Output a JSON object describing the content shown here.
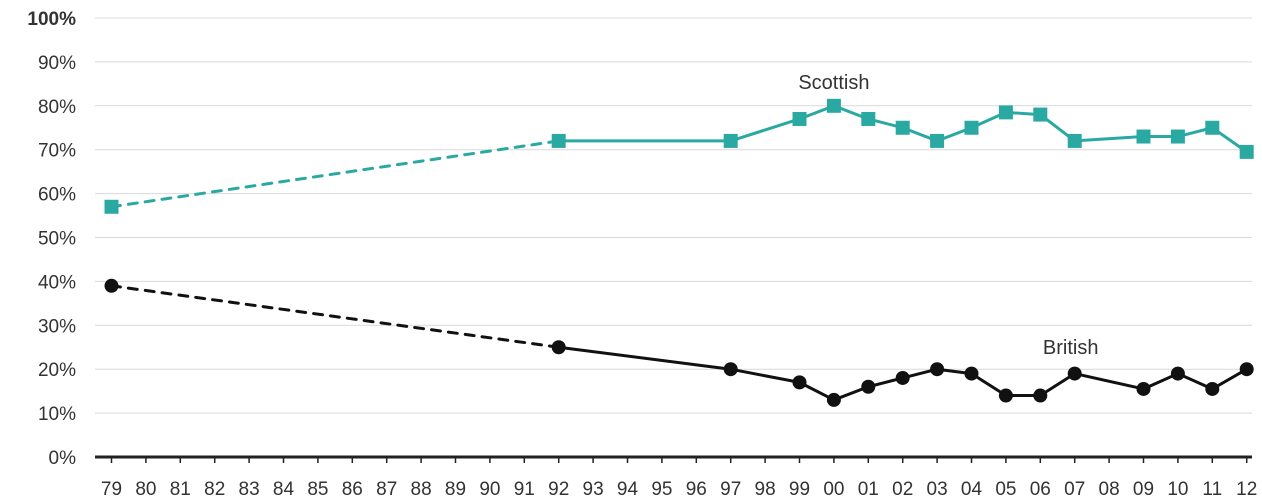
{
  "chart_data": {
    "type": "line",
    "title": "",
    "xlabel": "",
    "ylabel": "",
    "ylim": [
      0,
      100
    ],
    "y_ticks": [
      "0%",
      "10%",
      "20%",
      "30%",
      "40%",
      "50%",
      "60%",
      "70%",
      "80%",
      "90%",
      "100%"
    ],
    "x_ticks": [
      "79",
      "80",
      "81",
      "82",
      "83",
      "84",
      "85",
      "86",
      "87",
      "88",
      "89",
      "90",
      "91",
      "92",
      "93",
      "94",
      "95",
      "96",
      "97",
      "98",
      "99",
      "00",
      "01",
      "02",
      "03",
      "04",
      "05",
      "06",
      "07",
      "08",
      "09",
      "10",
      "11",
      "12"
    ],
    "grid": "horizontal",
    "series": [
      {
        "name": "Scottish",
        "color": "#2aa9a3",
        "marker": "square",
        "dashed_segment": [
          "79",
          "92"
        ],
        "points": [
          {
            "x": "79",
            "y": 57
          },
          {
            "x": "92",
            "y": 72
          },
          {
            "x": "97",
            "y": 72
          },
          {
            "x": "99",
            "y": 77
          },
          {
            "x": "00",
            "y": 80
          },
          {
            "x": "01",
            "y": 77
          },
          {
            "x": "02",
            "y": 75
          },
          {
            "x": "03",
            "y": 72
          },
          {
            "x": "04",
            "y": 75
          },
          {
            "x": "05",
            "y": 78.5
          },
          {
            "x": "06",
            "y": 78
          },
          {
            "x": "07",
            "y": 72
          },
          {
            "x": "09",
            "y": 73
          },
          {
            "x": "10",
            "y": 73
          },
          {
            "x": "11",
            "y": 75
          },
          {
            "x": "12",
            "y": 69.5
          }
        ]
      },
      {
        "name": "British",
        "color": "#111111",
        "marker": "circle",
        "dashed_segment": [
          "79",
          "92"
        ],
        "points": [
          {
            "x": "79",
            "y": 39
          },
          {
            "x": "92",
            "y": 25
          },
          {
            "x": "97",
            "y": 20
          },
          {
            "x": "99",
            "y": 17
          },
          {
            "x": "00",
            "y": 13
          },
          {
            "x": "01",
            "y": 16
          },
          {
            "x": "02",
            "y": 18
          },
          {
            "x": "03",
            "y": 20
          },
          {
            "x": "04",
            "y": 19
          },
          {
            "x": "05",
            "y": 14
          },
          {
            "x": "06",
            "y": 14
          },
          {
            "x": "07",
            "y": 19
          },
          {
            "x": "09",
            "y": 15.5
          },
          {
            "x": "10",
            "y": 19
          },
          {
            "x": "11",
            "y": 15.5
          },
          {
            "x": "12",
            "y": 20
          }
        ]
      }
    ]
  }
}
